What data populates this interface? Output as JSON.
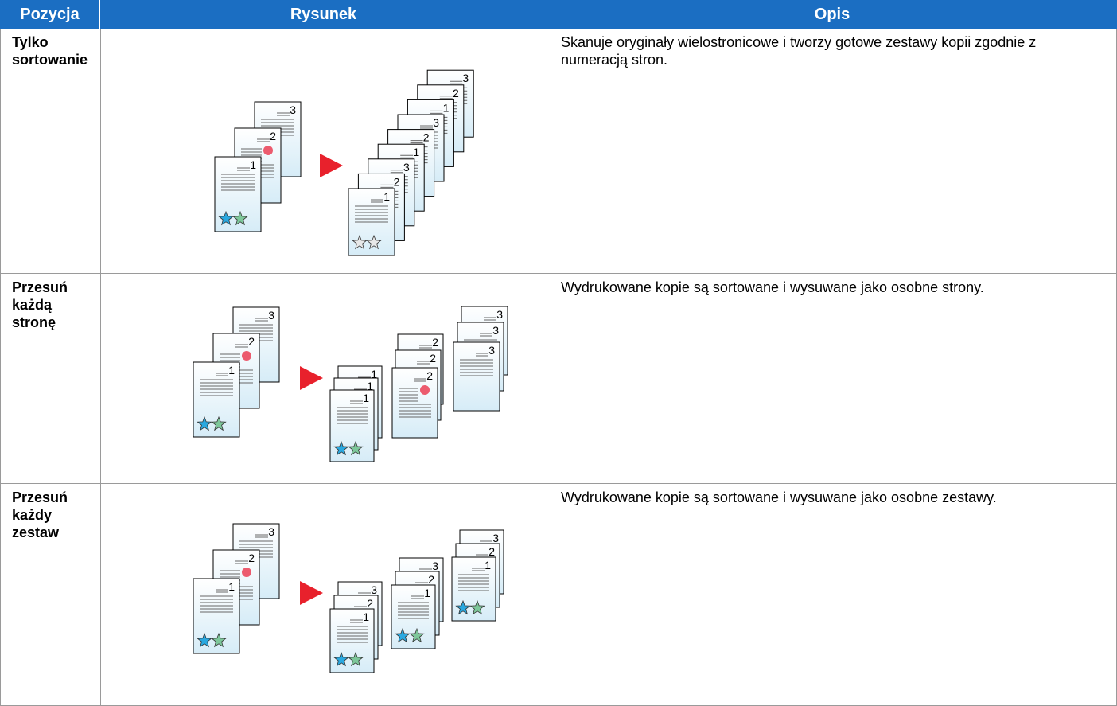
{
  "table": {
    "headers": [
      "Pozycja",
      "Rysunek",
      "Opis"
    ],
    "rows": [
      [
        "Tylko sortowanie",
        "Skanuje oryginały wielostronicowe i tworzy gotowe zestawy kopii zgodnie z numeracją stron."
      ],
      [
        "Przesuń każdą stronę",
        "Wydrukowane kopie są sortowane i wysuwane jako osobne strony."
      ],
      [
        "Przesuń każdy zestaw",
        "Wydrukowane kopie są sortowane i wysuwane jako osobne zestawy."
      ]
    ]
  },
  "figure_page_numbers": [
    "1",
    "2",
    "3"
  ]
}
